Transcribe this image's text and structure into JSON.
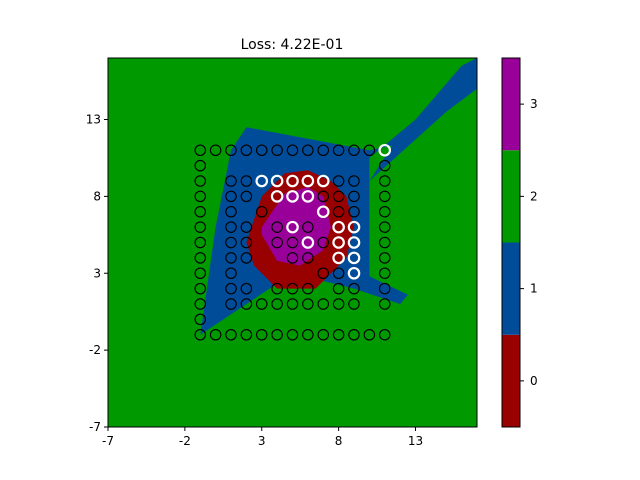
{
  "chart_data": {
    "type": "heatmap",
    "title": "Loss: 4.22E-01",
    "xlabel": "",
    "ylabel": "",
    "xlim": [
      -7,
      17
    ],
    "ylim": [
      -7,
      17
    ],
    "x_ticks": [
      "-7",
      "-2",
      "3",
      "8",
      "13"
    ],
    "y_ticks": [
      "-7",
      "-2",
      "3",
      "8",
      "13"
    ],
    "grid": false,
    "colorbar": {
      "levels": [
        {
          "value": "0",
          "color": "#990000"
        },
        {
          "value": "1",
          "color": "#004c99"
        },
        {
          "value": "2",
          "color": "#009900"
        },
        {
          "value": "3",
          "color": "#990099"
        }
      ]
    },
    "regions": {
      "background_class": 2,
      "blue_region": [
        [
          -1,
          -1
        ],
        [
          2,
          1
        ],
        [
          5,
          3
        ],
        [
          9,
          2
        ],
        [
          12,
          1
        ],
        [
          12.5,
          1.6
        ],
        [
          10,
          2.8
        ],
        [
          10,
          10.5
        ],
        [
          13,
          13
        ],
        [
          16,
          16.5
        ],
        [
          17,
          17
        ],
        [
          17,
          15
        ],
        [
          15,
          13.5
        ],
        [
          10,
          9
        ],
        [
          11.5,
          11.3
        ],
        [
          10,
          11
        ],
        [
          2,
          12.5
        ],
        [
          1,
          11
        ],
        [
          0,
          6
        ],
        [
          -1,
          -1
        ]
      ],
      "red_region": [
        [
          2,
          5
        ],
        [
          3,
          8
        ],
        [
          4.5,
          9.5
        ],
        [
          6,
          9.7
        ],
        [
          7.5,
          9
        ],
        [
          8.5,
          8
        ],
        [
          9,
          6
        ],
        [
          8.5,
          4
        ],
        [
          6.5,
          2
        ],
        [
          4,
          2
        ],
        [
          2.5,
          3.5
        ],
        [
          2,
          5
        ]
      ],
      "purple_region": [
        [
          3,
          6
        ],
        [
          4.5,
          8.2
        ],
        [
          6,
          8.6
        ],
        [
          7,
          8
        ],
        [
          7.5,
          6
        ],
        [
          7,
          4.5
        ],
        [
          5.5,
          3.5
        ],
        [
          4,
          3.8
        ],
        [
          3,
          5.5
        ],
        [
          3,
          6
        ]
      ]
    },
    "points_black": [
      [
        -1,
        11
      ],
      [
        0,
        11
      ],
      [
        1,
        11
      ],
      [
        2,
        11
      ],
      [
        3,
        11
      ],
      [
        4,
        11
      ],
      [
        5,
        11
      ],
      [
        6,
        11
      ],
      [
        7,
        11
      ],
      [
        8,
        11
      ],
      [
        9,
        11
      ],
      [
        10,
        11
      ],
      [
        -1,
        10
      ],
      [
        -1,
        9
      ],
      [
        -1,
        8
      ],
      [
        -1,
        7
      ],
      [
        -1,
        6
      ],
      [
        -1,
        5
      ],
      [
        -1,
        4
      ],
      [
        -1,
        3
      ],
      [
        -1,
        2
      ],
      [
        -1,
        1
      ],
      [
        -1,
        0
      ],
      [
        11,
        10
      ],
      [
        11,
        9
      ],
      [
        11,
        8
      ],
      [
        11,
        7
      ],
      [
        11,
        6
      ],
      [
        11,
        5
      ],
      [
        11,
        4
      ],
      [
        11,
        3
      ],
      [
        11,
        2
      ],
      [
        11,
        1
      ],
      [
        -1,
        -1
      ],
      [
        0,
        -1
      ],
      [
        1,
        -1
      ],
      [
        2,
        -1
      ],
      [
        3,
        -1
      ],
      [
        4,
        -1
      ],
      [
        5,
        -1
      ],
      [
        6,
        -1
      ],
      [
        7,
        -1
      ],
      [
        8,
        -1
      ],
      [
        9,
        -1
      ],
      [
        10,
        -1
      ],
      [
        11,
        -1
      ],
      [
        1,
        9
      ],
      [
        2,
        9
      ],
      [
        8,
        9
      ],
      [
        9,
        9
      ],
      [
        1,
        8
      ],
      [
        2,
        8
      ],
      [
        7,
        8
      ],
      [
        8,
        8
      ],
      [
        9,
        8
      ],
      [
        1,
        7
      ],
      [
        3,
        7
      ],
      [
        8,
        7
      ],
      [
        9,
        7
      ],
      [
        1,
        6
      ],
      [
        2,
        6
      ],
      [
        4,
        6
      ],
      [
        6,
        6
      ],
      [
        1,
        5
      ],
      [
        2,
        5
      ],
      [
        4,
        5
      ],
      [
        5,
        5
      ],
      [
        7,
        5
      ],
      [
        1,
        4
      ],
      [
        2,
        4
      ],
      [
        5,
        4
      ],
      [
        6,
        4
      ],
      [
        9,
        4
      ],
      [
        1,
        3
      ],
      [
        7,
        3
      ],
      [
        8,
        3
      ],
      [
        1,
        2
      ],
      [
        2,
        2
      ],
      [
        4,
        2
      ],
      [
        5,
        2
      ],
      [
        6,
        2
      ],
      [
        8,
        2
      ],
      [
        9,
        2
      ],
      [
        1,
        1
      ],
      [
        2,
        1
      ],
      [
        3,
        1
      ],
      [
        4,
        1
      ],
      [
        5,
        1
      ],
      [
        6,
        1
      ],
      [
        7,
        1
      ],
      [
        8,
        1
      ],
      [
        9,
        1
      ]
    ],
    "points_white": [
      [
        11,
        11
      ],
      [
        3,
        9
      ],
      [
        4,
        9
      ],
      [
        5,
        9
      ],
      [
        6,
        9
      ],
      [
        7,
        9
      ],
      [
        4,
        8
      ],
      [
        5,
        8
      ],
      [
        6,
        8
      ],
      [
        7,
        7
      ],
      [
        5,
        6
      ],
      [
        8,
        6
      ],
      [
        9,
        6
      ],
      [
        6,
        5
      ],
      [
        8,
        5
      ],
      [
        9,
        5
      ],
      [
        8,
        4
      ],
      [
        9,
        4
      ],
      [
        9,
        3
      ]
    ]
  }
}
